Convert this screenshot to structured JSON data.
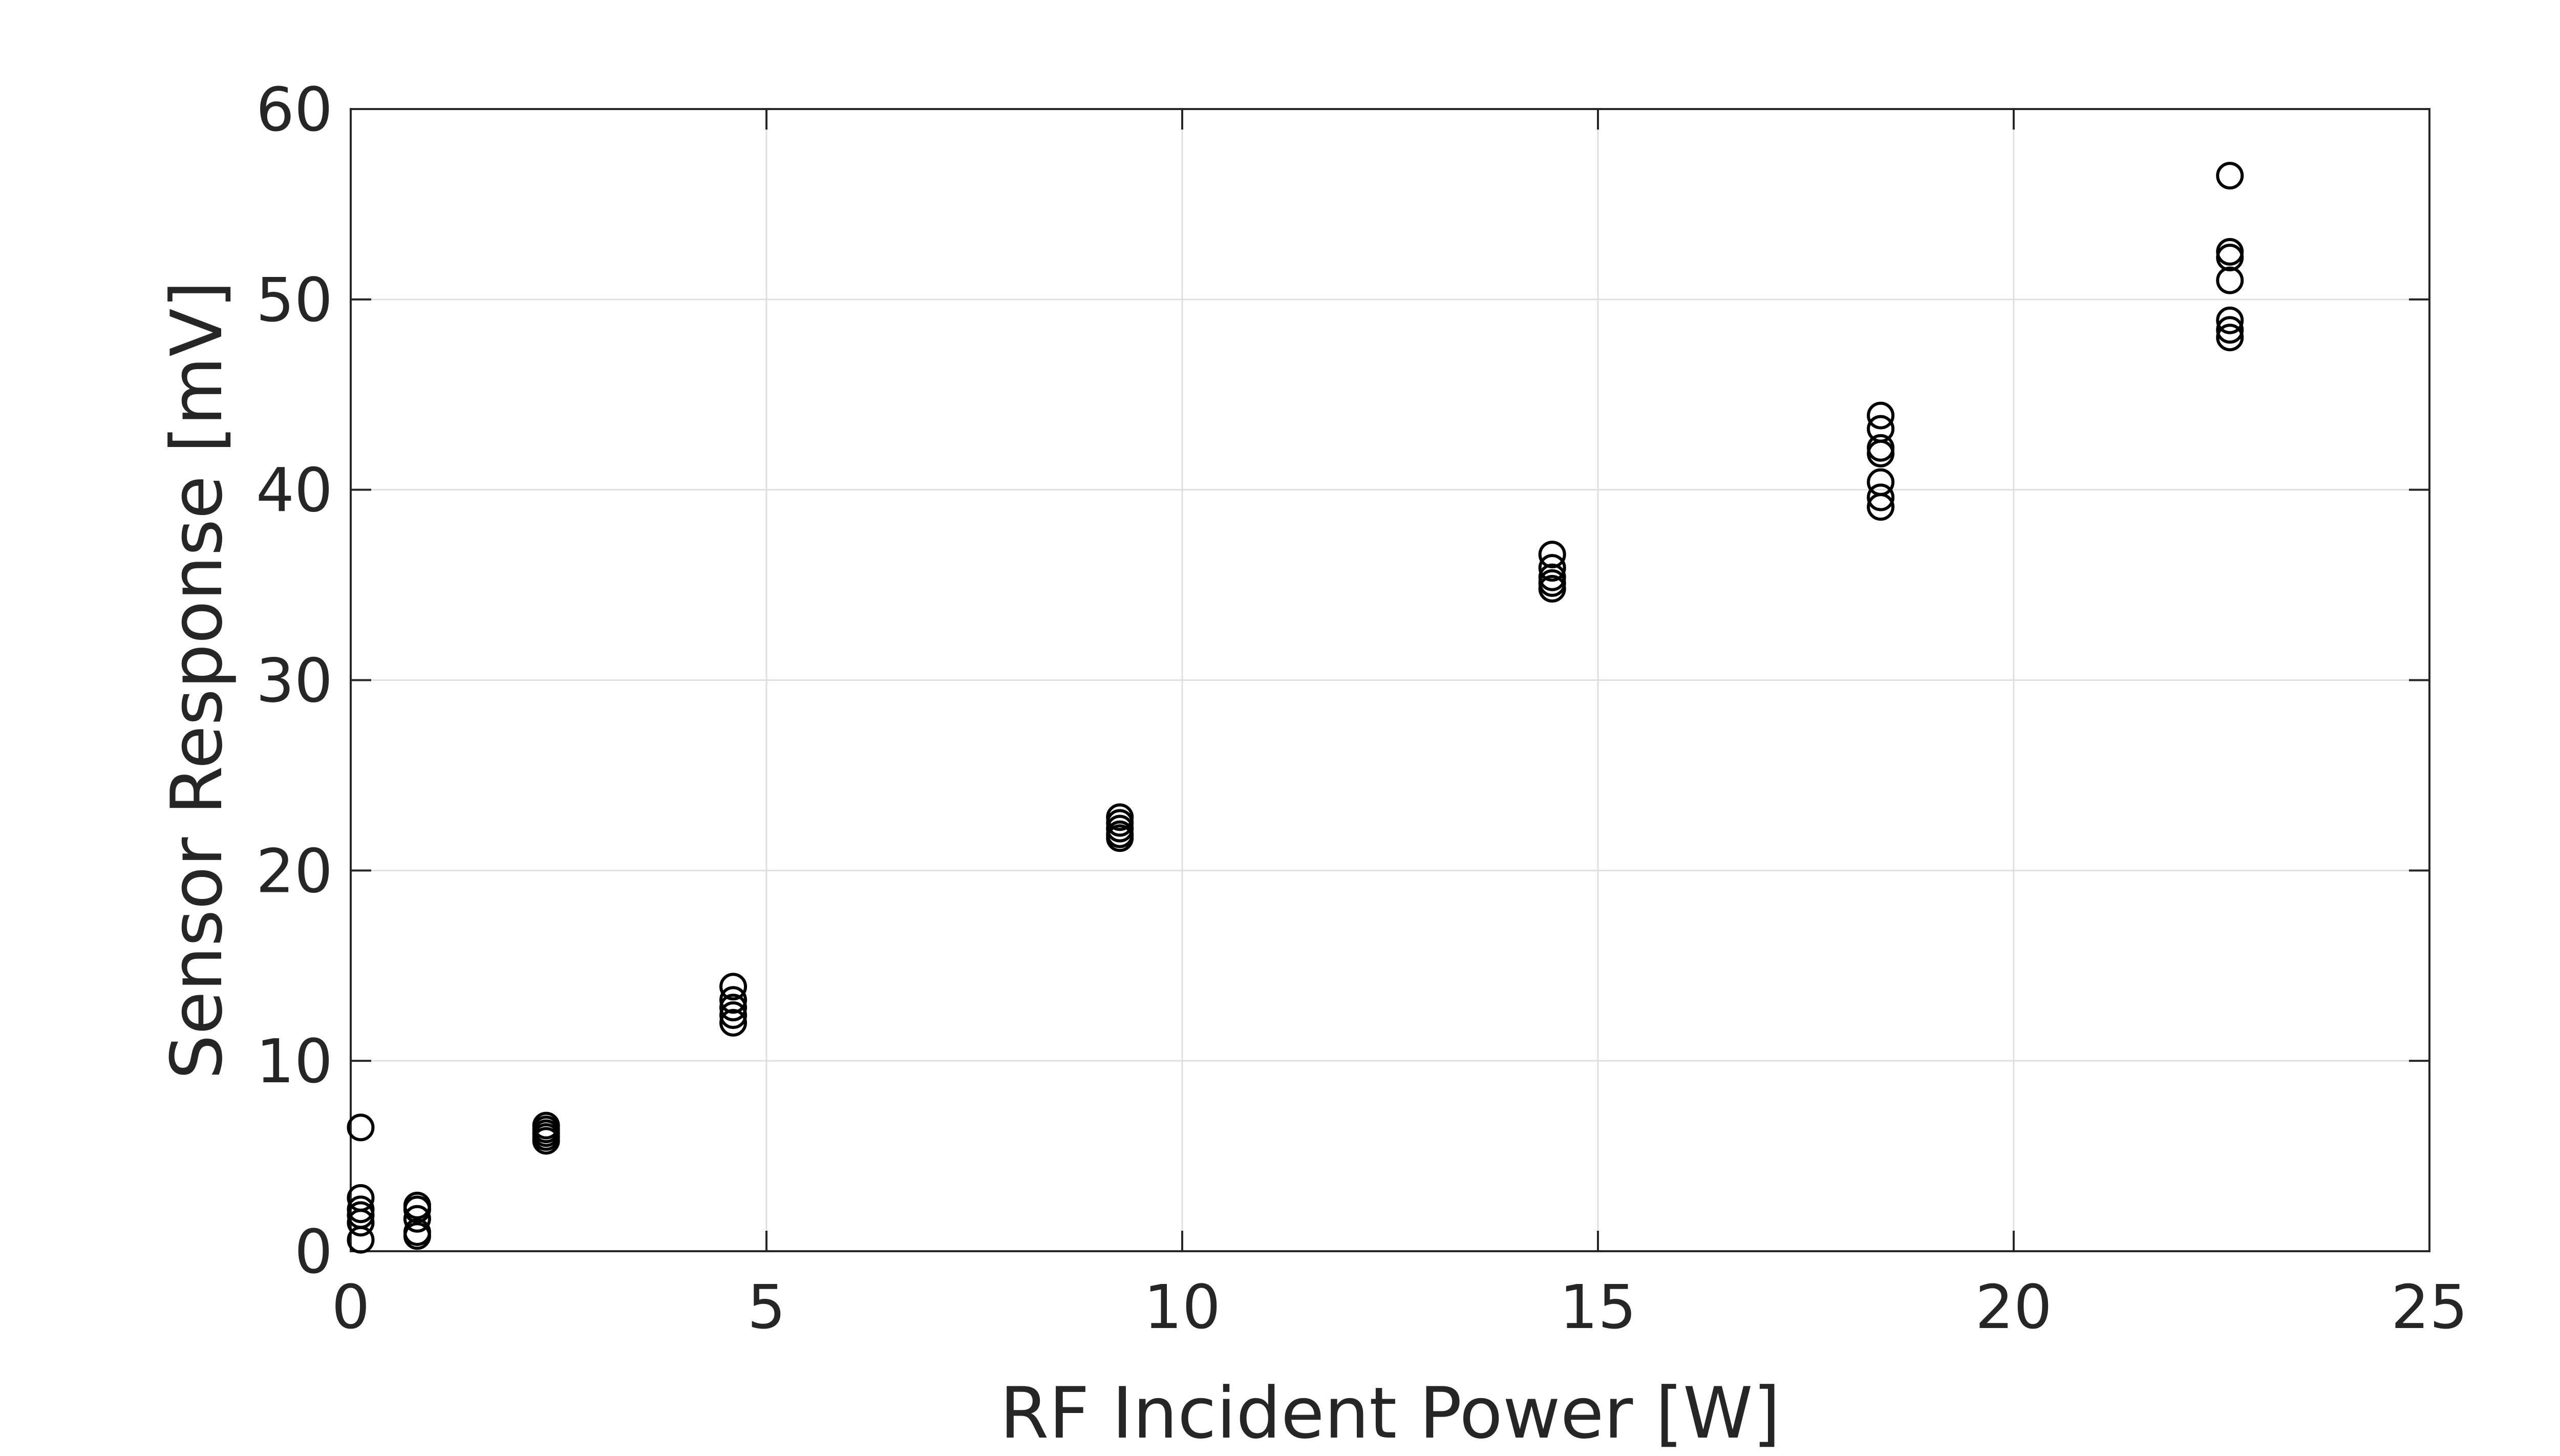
{
  "chart_data": {
    "type": "scatter",
    "xlabel": "RF Incident Power [W]",
    "ylabel": "Sensor Response [mV]",
    "xlim": [
      0,
      25
    ],
    "ylim": [
      0,
      60
    ],
    "xticks": [
      "0",
      "5",
      "10",
      "15",
      "20",
      "25"
    ],
    "yticks": [
      "0",
      "10",
      "20",
      "30",
      "40",
      "50",
      "60"
    ],
    "grid": true,
    "marker": "open-circle",
    "colors": {
      "marker": "#000000",
      "axis": "#262626",
      "grid": "#dfdfdf"
    },
    "series": [
      {
        "points": [
          [
            0.12,
            6.5
          ],
          [
            0.12,
            2.8
          ],
          [
            0.12,
            2.2
          ],
          [
            0.12,
            1.9
          ],
          [
            0.12,
            1.5
          ],
          [
            0.12,
            0.6
          ],
          [
            0.8,
            2.4
          ],
          [
            0.8,
            2.2
          ],
          [
            0.8,
            1.7
          ],
          [
            0.8,
            1.0
          ],
          [
            0.8,
            0.8
          ],
          [
            2.35,
            6.6
          ],
          [
            2.35,
            6.4
          ],
          [
            2.35,
            6.2
          ],
          [
            2.35,
            6.0
          ],
          [
            2.35,
            5.8
          ],
          [
            4.6,
            13.9
          ],
          [
            4.6,
            13.2
          ],
          [
            4.6,
            12.8
          ],
          [
            4.6,
            12.4
          ],
          [
            4.6,
            12.0
          ],
          [
            9.25,
            22.8
          ],
          [
            9.25,
            22.5
          ],
          [
            9.25,
            22.2
          ],
          [
            9.25,
            21.9
          ],
          [
            9.25,
            21.7
          ],
          [
            14.45,
            36.6
          ],
          [
            14.45,
            35.9
          ],
          [
            14.45,
            35.4
          ],
          [
            14.45,
            35.1
          ],
          [
            14.45,
            34.8
          ],
          [
            18.4,
            43.9
          ],
          [
            18.4,
            43.2
          ],
          [
            18.4,
            42.2
          ],
          [
            18.4,
            41.9
          ],
          [
            18.4,
            40.4
          ],
          [
            18.4,
            39.6
          ],
          [
            18.4,
            39.1
          ],
          [
            22.6,
            56.5
          ],
          [
            22.6,
            52.5
          ],
          [
            22.6,
            52.2
          ],
          [
            22.6,
            51.0
          ],
          [
            22.6,
            48.9
          ],
          [
            22.6,
            48.4
          ],
          [
            22.6,
            48.0
          ]
        ]
      }
    ]
  }
}
